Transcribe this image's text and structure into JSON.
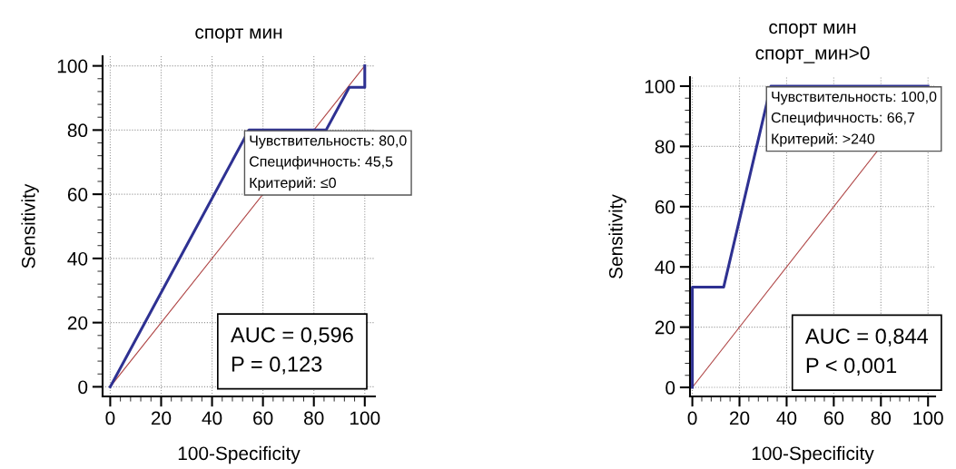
{
  "chart_data": [
    {
      "type": "line",
      "title": "спорт мин",
      "xlabel": "100-Specificity",
      "ylabel": "Sensitivity",
      "series": [
        {
          "color": "#2e3192",
          "x": [
            0,
            54.5,
            84.8,
            93.9,
            100,
            100
          ],
          "values": [
            0,
            80,
            80,
            93.3,
            93.3,
            100
          ]
        },
        {
          "color": "#b04848",
          "x": [
            0,
            100
          ],
          "values": [
            0,
            100
          ]
        }
      ],
      "xlim": [
        -3,
        104
      ],
      "ylim": [
        -3,
        103
      ],
      "xticks": [
        0,
        20,
        40,
        60,
        80,
        100
      ],
      "yticks": [
        0,
        20,
        40,
        60,
        80,
        100
      ],
      "grid": true,
      "marker": "none",
      "line_style": "solid",
      "legend": false,
      "annotations": [
        {
          "text": "Чувствительность: 80,0\nСпецифичность: 45,5\nКритерий: ≤0",
          "x": 54.5,
          "y": 80
        },
        "AUC = 0,596\nP = 0,123"
      ]
    },
    {
      "type": "line",
      "title": "спорт мин",
      "subtitle": "спорт_мин>0",
      "xlabel": "100-Specificity",
      "ylabel": "Sensitivity",
      "series": [
        {
          "color": "#2e3192",
          "x": [
            0,
            0,
            13.3,
            33.3,
            100
          ],
          "values": [
            0,
            33.3,
            33.3,
            100,
            100
          ]
        },
        {
          "color": "#b04848",
          "x": [
            0,
            100
          ],
          "values": [
            0,
            100
          ]
        }
      ],
      "xlim": [
        -1,
        103
      ],
      "ylim": [
        -3,
        103
      ],
      "xticks": [
        0,
        20,
        40,
        60,
        80,
        100
      ],
      "yticks": [
        0,
        20,
        40,
        60,
        80,
        100
      ],
      "grid": true,
      "marker": "none",
      "line_style": "solid",
      "legend": false,
      "annotations": [
        {
          "text": "Чувствительность: 100,0\nСпецифичность: 66,7\nКритерий: >240",
          "x": 33.3,
          "y": 100
        },
        "AUC = 0,844\nP < 0,001"
      ]
    }
  ]
}
